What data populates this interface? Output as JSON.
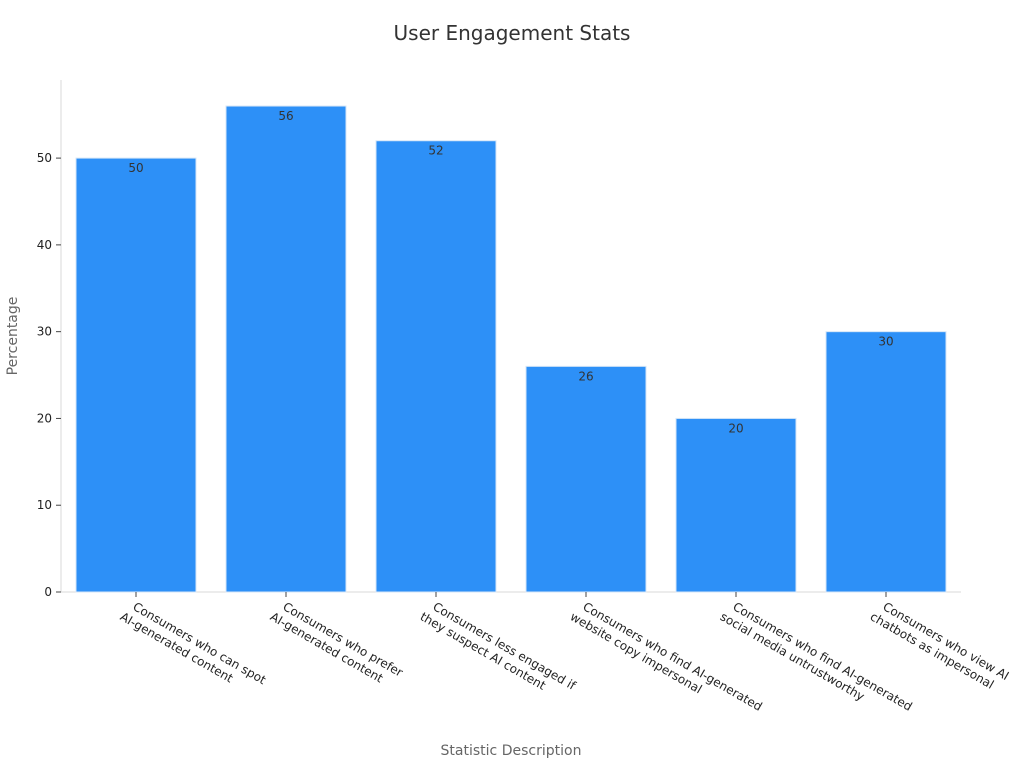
{
  "chart_data": {
    "type": "bar",
    "title": "User Engagement Stats",
    "xlabel": "Statistic Description",
    "ylabel": "Percentage",
    "ylim": [
      0,
      59
    ],
    "yticks": [
      0,
      10,
      20,
      30,
      40,
      50
    ],
    "grid": false,
    "legend": "none",
    "bar_color": "#2d90f7",
    "categories": [
      [
        "Consumers who can spot",
        "AI-generated content"
      ],
      [
        "Consumers who prefer",
        "AI-generated content"
      ],
      [
        "Consumers less engaged if",
        "they suspect AI content"
      ],
      [
        "Consumers who find AI-generated",
        "website copy impersonal"
      ],
      [
        "Consumers who find AI-generated",
        "social media untrustworthy"
      ],
      [
        "Consumers who view AI",
        "chatbots as impersonal"
      ]
    ],
    "values": [
      50,
      56,
      52,
      26,
      20,
      30
    ],
    "data_labels": [
      "50",
      "56",
      "52",
      "26",
      "20",
      "30"
    ]
  }
}
